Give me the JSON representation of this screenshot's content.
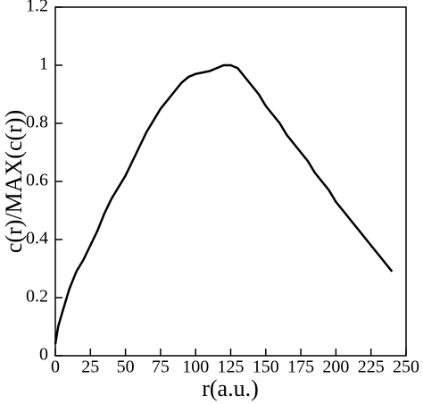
{
  "chart_data": {
    "type": "line",
    "x_label": "r(a.u.)",
    "y_label": "c(r)/MAX(c(r))",
    "x": [
      0,
      2,
      5,
      10,
      15,
      20,
      25,
      30,
      35,
      40,
      45,
      50,
      55,
      60,
      65,
      70,
      75,
      80,
      85,
      90,
      95,
      100,
      105,
      110,
      115,
      120,
      125,
      130,
      135,
      140,
      145,
      150,
      155,
      160,
      165,
      170,
      175,
      180,
      185,
      190,
      195,
      200,
      205,
      210,
      215,
      220,
      225,
      230,
      235,
      240
    ],
    "series": [
      {
        "color": "#000000",
        "values": [
          0.04,
          0.1,
          0.15,
          0.23,
          0.29,
          0.33,
          0.38,
          0.43,
          0.49,
          0.54,
          0.58,
          0.62,
          0.67,
          0.72,
          0.77,
          0.81,
          0.85,
          0.88,
          0.91,
          0.94,
          0.96,
          0.97,
          0.975,
          0.98,
          0.99,
          1.0,
          1.0,
          0.99,
          0.96,
          0.93,
          0.9,
          0.86,
          0.83,
          0.8,
          0.76,
          0.73,
          0.7,
          0.67,
          0.63,
          0.6,
          0.57,
          0.53,
          0.5,
          0.47,
          0.44,
          0.41,
          0.38,
          0.35,
          0.32,
          0.29
        ]
      }
    ],
    "xlim": [
      0,
      250
    ],
    "ylim": [
      0,
      1.2
    ],
    "xticks": [
      0,
      25,
      50,
      75,
      100,
      125,
      150,
      175,
      200,
      225,
      250
    ],
    "yticks": [
      0,
      0.2,
      0.4,
      0.6,
      0.8,
      1,
      1.2
    ]
  }
}
